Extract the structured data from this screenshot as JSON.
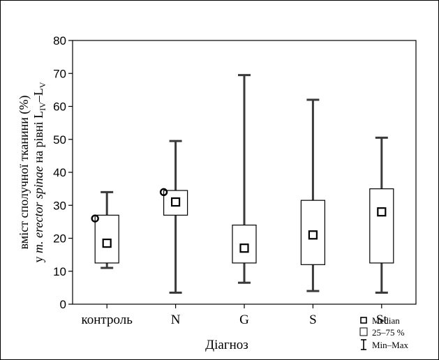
{
  "chart_data": {
    "type": "boxplot",
    "xlabel": "Діагноз",
    "ylabel": {
      "line1": "вміст сполучної тканини (%)",
      "line2_prefix": "у ",
      "line2_italic": "m. erector spinae",
      "line2_mid": " на рівні L",
      "line2_sub1": "IV",
      "line2_dash": "–L",
      "line2_sub2": "V"
    },
    "ylim": [
      0,
      80
    ],
    "yticks": [
      "0",
      "10",
      "20",
      "30",
      "40",
      "50",
      "60",
      "70",
      "80"
    ],
    "grid": false,
    "categories": [
      "контроль",
      "N",
      "G",
      "S",
      "St"
    ],
    "boxes": [
      {
        "category": "контроль",
        "min": 11,
        "q1": 12.5,
        "median": 18.5,
        "q3": 27,
        "max": 34,
        "outlier": 26
      },
      {
        "category": "N",
        "min": 3.5,
        "q1": 27,
        "median": 31,
        "q3": 34.5,
        "max": 49.5,
        "outlier": 34
      },
      {
        "category": "G",
        "min": 6.5,
        "q1": 12.5,
        "median": 17,
        "q3": 24,
        "max": 69.5,
        "outlier": null
      },
      {
        "category": "S",
        "min": 4,
        "q1": 12,
        "median": 21,
        "q3": 31.5,
        "max": 62,
        "outlier": null
      },
      {
        "category": "St",
        "min": 3.5,
        "q1": 12.5,
        "median": 28,
        "q3": 35,
        "max": 50.5,
        "outlier": null
      }
    ],
    "legend": {
      "placement": "bottom-right",
      "items": [
        {
          "icon": "median-square-icon",
          "label": "Median"
        },
        {
          "icon": "box-icon",
          "label": "25–75 %"
        },
        {
          "icon": "whisker-icon",
          "label": "Min–Max"
        }
      ]
    }
  }
}
